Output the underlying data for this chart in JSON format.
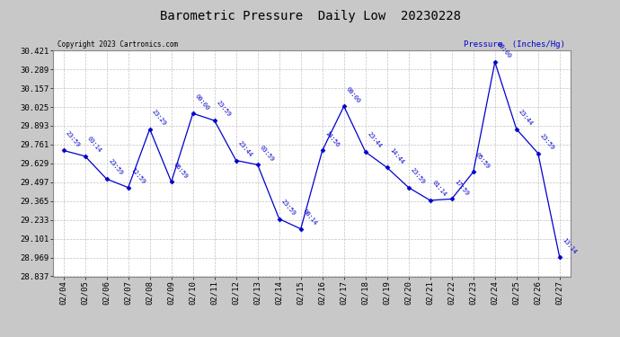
{
  "title": "Barometric Pressure  Daily Low  20230228",
  "ylabel": "Pressure  (Inches/Hg)",
  "copyright": "Copyright 2023 Cartronics.com",
  "dates": [
    "02/04",
    "02/05",
    "02/06",
    "02/07",
    "02/08",
    "02/09",
    "02/10",
    "02/11",
    "02/12",
    "02/13",
    "02/14",
    "02/15",
    "02/16",
    "02/17",
    "02/18",
    "02/19",
    "02/20",
    "02/21",
    "02/22",
    "02/23",
    "02/24",
    "02/25",
    "02/26",
    "02/27"
  ],
  "pressures": [
    29.72,
    29.68,
    29.52,
    29.46,
    29.87,
    29.5,
    29.98,
    29.93,
    29.65,
    29.62,
    29.24,
    29.17,
    29.72,
    30.03,
    29.71,
    29.6,
    29.46,
    29.37,
    29.38,
    29.57,
    30.34,
    29.87,
    29.7,
    28.97
  ],
  "times": [
    "23:59",
    "03:14",
    "23:59",
    "12:59",
    "23:29",
    "06:59",
    "00:00",
    "23:59",
    "23:44",
    "03:59",
    "23:59",
    "08:14",
    "14:56",
    "00:00",
    "23:44",
    "14:44",
    "23:59",
    "01:14",
    "17:59",
    "05:59",
    "00:00",
    "23:44",
    "23:59",
    "13:14"
  ],
  "ylim_min": 28.837,
  "ylim_max": 30.421,
  "yticks": [
    28.837,
    28.969,
    29.101,
    29.233,
    29.365,
    29.497,
    29.629,
    29.761,
    29.893,
    30.025,
    30.157,
    30.289,
    30.421
  ],
  "line_color": "#0000cc",
  "bg_color": "#c8c8c8",
  "plot_bg_color": "#ffffff",
  "grid_color": "#bbbbbb",
  "title_color": "#000000",
  "copyright_color": "#000000",
  "ylabel_color": "#0000cc"
}
